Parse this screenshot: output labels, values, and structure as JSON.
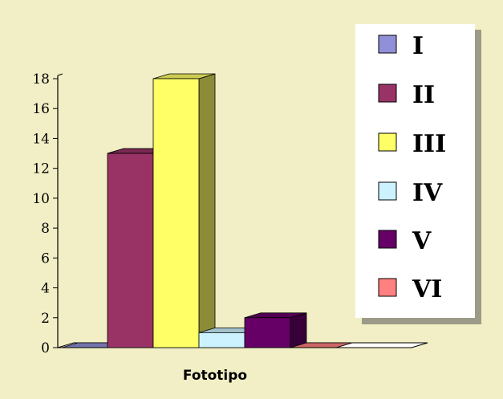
{
  "chart_data": {
    "type": "bar",
    "title": "",
    "xlabel": "Fototipo",
    "ylabel": "",
    "categories": [
      "Fototipo"
    ],
    "ylim": [
      0,
      18
    ],
    "yticks": [
      "0",
      "2",
      "4",
      "6",
      "8",
      "10",
      "12",
      "14",
      "16",
      "18"
    ],
    "grid": false,
    "legend_position": "right",
    "series": [
      {
        "name": "I",
        "values": [
          0
        ],
        "color": "#9090d8"
      },
      {
        "name": "II",
        "values": [
          13
        ],
        "color": "#993366"
      },
      {
        "name": "III",
        "values": [
          18
        ],
        "color": "#ffff66"
      },
      {
        "name": "IV",
        "values": [
          1
        ],
        "color": "#ccf2ff"
      },
      {
        "name": "V",
        "values": [
          2
        ],
        "color": "#660066"
      },
      {
        "name": "VI",
        "values": [
          0
        ],
        "color": "#ff8080"
      }
    ]
  },
  "colors": {
    "background": "#f2efc6",
    "legend_bg": "#ffffff"
  }
}
